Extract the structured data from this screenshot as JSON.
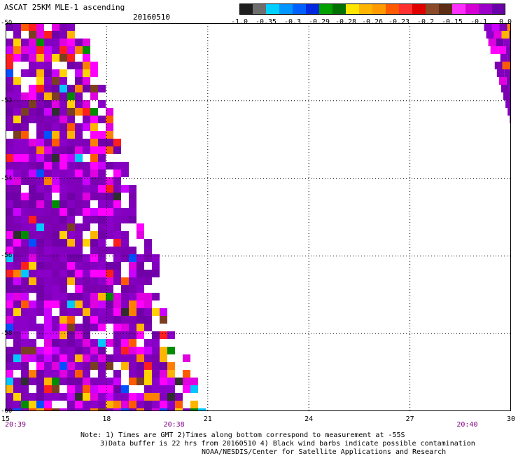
{
  "header": {
    "title": "ASCAT 25KM MLE-1 ascending",
    "date": "20160510"
  },
  "colorbar": {
    "labels": [
      "-1.0",
      "-0.35",
      "-0.3",
      "-0.29",
      "-0.28",
      "-0.26",
      "-0.23",
      "-0.2",
      "-0.15",
      "-0.1",
      "0.0"
    ],
    "colors": [
      "#2e2e2e",
      "#8a8a8a",
      "#00c8ff",
      "#0050ff",
      "#008c00",
      "#ffd200",
      "#ff8000",
      "#ff1e1e",
      "#7a3f20",
      "#ff00ff",
      "#7f00b8"
    ]
  },
  "chart_data": {
    "type": "heatmap",
    "x_ticks": [
      "15",
      "18",
      "21",
      "24",
      "27",
      "30"
    ],
    "y_ticks": [
      "-50",
      "-52",
      "-54",
      "-56",
      "-58",
      "-60"
    ],
    "xlim": [
      15,
      30
    ],
    "ylim": [
      -60,
      -50
    ],
    "time_labels": [
      {
        "x": 15,
        "label": "20:39"
      },
      {
        "x": 20,
        "label": "20:38"
      },
      {
        "x": 28.7,
        "label": "20:40"
      }
    ],
    "swaths": [
      {
        "description": "west",
        "lat_top": -50,
        "lat_bottom": -60,
        "lon_left": 15,
        "lon_right_top": 17.2,
        "lon_right_bottom": 20.8
      },
      {
        "description": "east",
        "lat_top": -50,
        "lat_bottom": -52.5,
        "lon_left_top": 29.2,
        "lon_left_bottom": 30,
        "lon_right": 30
      }
    ]
  },
  "notes": {
    "line1": "Note: 1) Times are GMT 2)Times along bottom correspond to measurement at -55S",
    "line2": "3)Data buffer is 22 hrs from 20160510 4) Black wind barbs indicate possible contamination",
    "line3": "NOAA/NESDIS/Center for Satellite Applications and Research"
  }
}
